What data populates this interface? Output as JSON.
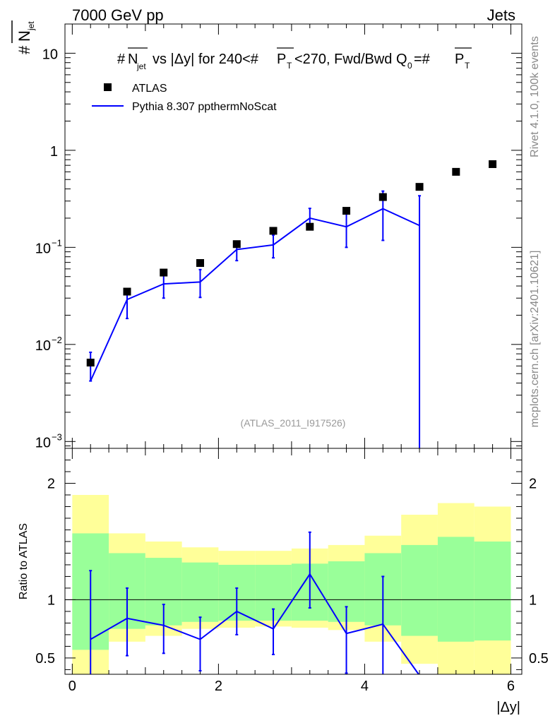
{
  "header": {
    "left": "7000 GeV pp",
    "right": "Jets"
  },
  "side_labels": {
    "rivet": "Rivet 4.1.0,  100k events",
    "source": "mcplots.cern.ch [arXiv:2401.10621]"
  },
  "chart_data": [
    {
      "type": "scatter",
      "panel": "main",
      "title": "#Njet vs |Δy| for 240<#PT<270, Fwd/Bwd Q0=#PT",
      "ylabel": "#Njet",
      "xlabel": "",
      "yscale": "log",
      "xlim": [
        -0.1,
        6.15
      ],
      "ylim": [
        0.00085,
        20
      ],
      "y_ticks": [
        {
          "value": 0.001,
          "mant": "10",
          "exp": "−3"
        },
        {
          "value": 0.01,
          "mant": "10",
          "exp": "−2"
        },
        {
          "value": 0.1,
          "mant": "10",
          "exp": "−1"
        },
        {
          "value": 1,
          "mant": "1",
          "exp": ""
        },
        {
          "value": 10,
          "mant": "10",
          "exp": ""
        }
      ],
      "legend": [
        {
          "name": "ATLAS",
          "marker": "square",
          "color": "#000000"
        },
        {
          "name": "Pythia 8.307 ppthermNoScat",
          "marker": "line",
          "color": "#0000ff"
        }
      ],
      "watermark": "(ATLAS_2011_I917526)",
      "series": [
        {
          "name": "ATLAS",
          "x": [
            0.25,
            0.75,
            1.25,
            1.75,
            2.25,
            2.75,
            3.25,
            3.75,
            4.25,
            4.75,
            5.25,
            5.75
          ],
          "y": [
            0.0065,
            0.035,
            0.055,
            0.069,
            0.108,
            0.148,
            0.163,
            0.238,
            0.33,
            0.42,
            0.6,
            0.72
          ]
        },
        {
          "name": "Pythia 8.307 ppthermNoScat",
          "x": [
            0.25,
            0.75,
            1.25,
            1.75,
            2.25,
            2.75,
            3.25,
            3.75,
            4.25,
            4.75
          ],
          "y": [
            0.0042,
            0.029,
            0.042,
            0.044,
            0.095,
            0.106,
            0.2,
            0.163,
            0.25,
            0.168
          ],
          "err_low": [
            0.0042,
            0.0185,
            0.03,
            0.0305,
            0.073,
            0.078,
            0.152,
            0.1,
            0.118,
            0.0008
          ],
          "err_high": [
            0.0083,
            0.036,
            0.053,
            0.059,
            0.115,
            0.134,
            0.252,
            0.225,
            0.38,
            0.34
          ]
        }
      ]
    },
    {
      "type": "line",
      "panel": "ratio",
      "ylabel": "Ratio to ATLAS",
      "xlabel": "|Δy|",
      "xlim": [
        -0.1,
        6.15
      ],
      "ylim": [
        0.36,
        2.3
      ],
      "x_ticks": [
        0,
        2,
        4,
        6
      ],
      "y_ticks": [
        0.5,
        1,
        2
      ],
      "reference_line": 1,
      "bands": {
        "bins": [
          [
            0,
            0.5
          ],
          [
            0.5,
            1
          ],
          [
            1,
            1.5
          ],
          [
            1.5,
            2
          ],
          [
            2,
            2.5
          ],
          [
            2.5,
            3
          ],
          [
            3,
            3.5
          ],
          [
            3.5,
            4
          ],
          [
            4,
            4.5
          ],
          [
            4.5,
            5
          ],
          [
            5,
            5.5
          ],
          [
            5.5,
            6
          ]
        ],
        "yellow_low": [
          0.15,
          0.64,
          0.69,
          0.75,
          0.76,
          0.77,
          0.76,
          0.74,
          0.64,
          0.45,
          0.21,
          0.23
        ],
        "yellow_high": [
          1.9,
          1.57,
          1.5,
          1.45,
          1.42,
          1.42,
          1.44,
          1.47,
          1.55,
          1.73,
          1.83,
          1.8
        ],
        "green_low": [
          0.57,
          0.75,
          0.78,
          0.81,
          0.82,
          0.82,
          0.82,
          0.81,
          0.78,
          0.69,
          0.64,
          0.65
        ],
        "green_high": [
          1.57,
          1.4,
          1.36,
          1.32,
          1.3,
          1.3,
          1.31,
          1.33,
          1.4,
          1.47,
          1.54,
          1.5
        ]
      },
      "series": [
        {
          "name": "Pythia 8.307 / ATLAS",
          "x": [
            0.25,
            0.75,
            1.25,
            1.75,
            2.25,
            2.75,
            3.25,
            3.75,
            4.25,
            4.75
          ],
          "y": [
            0.66,
            0.84,
            0.78,
            0.66,
            0.9,
            0.75,
            1.22,
            0.71,
            0.79,
            0.35
          ],
          "err_low": [
            0.2,
            0.52,
            0.54,
            0.39,
            0.7,
            0.53,
            0.93,
            0.37,
            0.3,
            0.3
          ],
          "err_high": [
            1.25,
            1.1,
            0.96,
            0.85,
            1.1,
            0.92,
            1.58,
            0.94,
            1.2,
            0.36
          ]
        }
      ]
    }
  ]
}
